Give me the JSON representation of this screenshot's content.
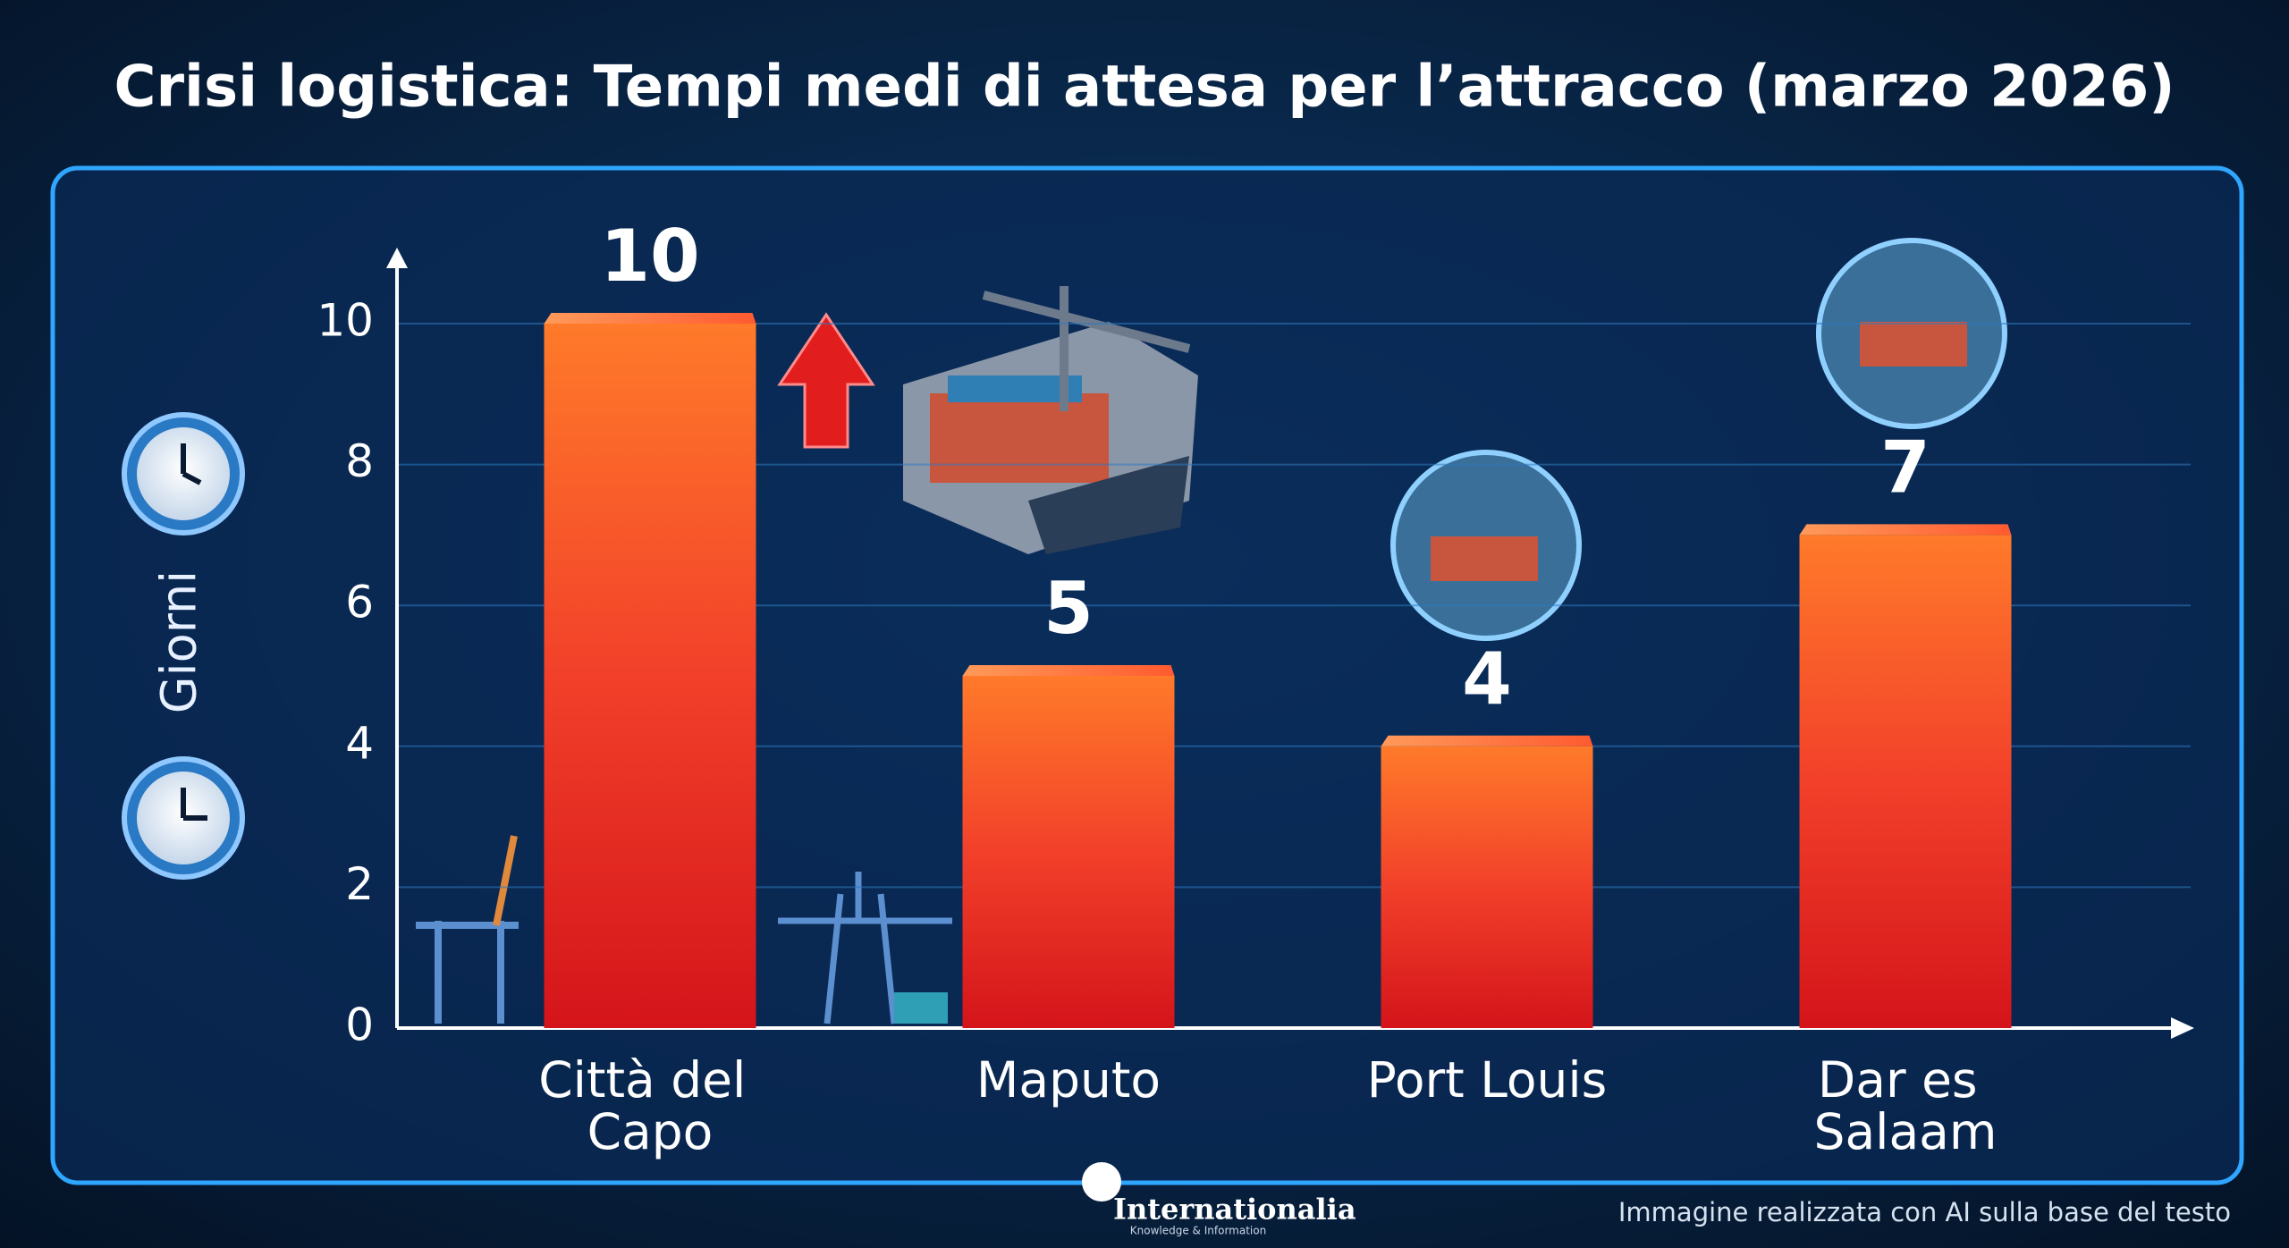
{
  "chart_data": {
    "type": "bar",
    "title": "Crisi logistica: Tempi medi di attesa per l’attracco (marzo 2026)",
    "y_label": "Giorni",
    "categories": [
      "Città del Capo",
      "Maputo",
      "Port Louis",
      "Dar es Salaam"
    ],
    "values": [
      10,
      5,
      4,
      7
    ],
    "color": "#e8241c",
    "ylim": [
      0,
      10
    ],
    "yticks": [
      0,
      2,
      4,
      6,
      8,
      10
    ],
    "grid": true
  },
  "footer": {
    "brand": "Internationalia",
    "tagline": "Knowledge & Information",
    "note": "Immagine realizzata con AI sulla base del testo"
  }
}
